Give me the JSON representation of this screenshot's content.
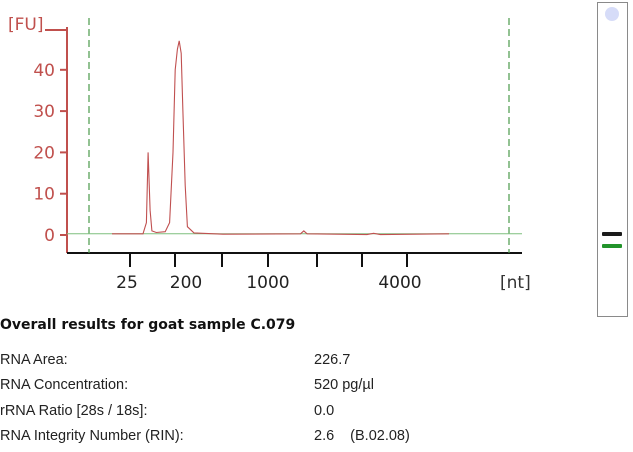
{
  "chart_data": {
    "type": "line",
    "y_unit_label": "[FU]",
    "x_unit_label": "[nt]",
    "y_ticks": [
      0,
      10,
      20,
      30,
      40
    ],
    "ylim": [
      -5,
      50
    ],
    "x_tick_labels": [
      "25",
      "200",
      "1000",
      "4000"
    ],
    "series": [
      {
        "color": "#c05050",
        "points": [
          [
            0,
            0.3
          ],
          [
            14,
            0.3
          ],
          [
            15.5,
            3
          ],
          [
            16.3,
            20
          ],
          [
            17.2,
            6
          ],
          [
            18,
            1
          ],
          [
            20,
            0.6
          ],
          [
            24,
            0.8
          ],
          [
            26,
            3
          ],
          [
            27.5,
            20
          ],
          [
            28.5,
            40
          ],
          [
            29.5,
            45
          ],
          [
            30.3,
            47
          ],
          [
            31.2,
            44
          ],
          [
            32,
            30
          ],
          [
            33,
            12
          ],
          [
            34,
            2
          ],
          [
            37,
            0.5
          ],
          [
            50,
            0.2
          ],
          [
            85,
            0.3
          ],
          [
            86.5,
            1
          ],
          [
            88,
            0.3
          ],
          [
            115,
            0.1
          ],
          [
            118,
            0.4
          ],
          [
            121,
            0.1
          ],
          [
            152,
            0.3
          ]
        ]
      }
    ],
    "baseline": {
      "color": "#7fbf7f",
      "value": 0.3
    },
    "markers": {
      "color": "#4a9a4a",
      "style": "dashed",
      "count": 2
    },
    "grid": false
  },
  "gel": {
    "marker_color": "#d6dcf8",
    "band_colors": [
      "#1b1b1b",
      "#22942b"
    ]
  },
  "results": {
    "heading": "Overall results for goat sample C.079",
    "rows": [
      {
        "label": "RNA Area:",
        "value": "226.7"
      },
      {
        "label": "RNA Concentration:",
        "value": "520 pg/µl"
      },
      {
        "label": "rRNA Ratio [28s / 18s]:",
        "value": "0.0"
      },
      {
        "label": "RNA Integrity Number (RIN):",
        "value": "2.6",
        "extra": "(B.02.08)"
      }
    ]
  }
}
